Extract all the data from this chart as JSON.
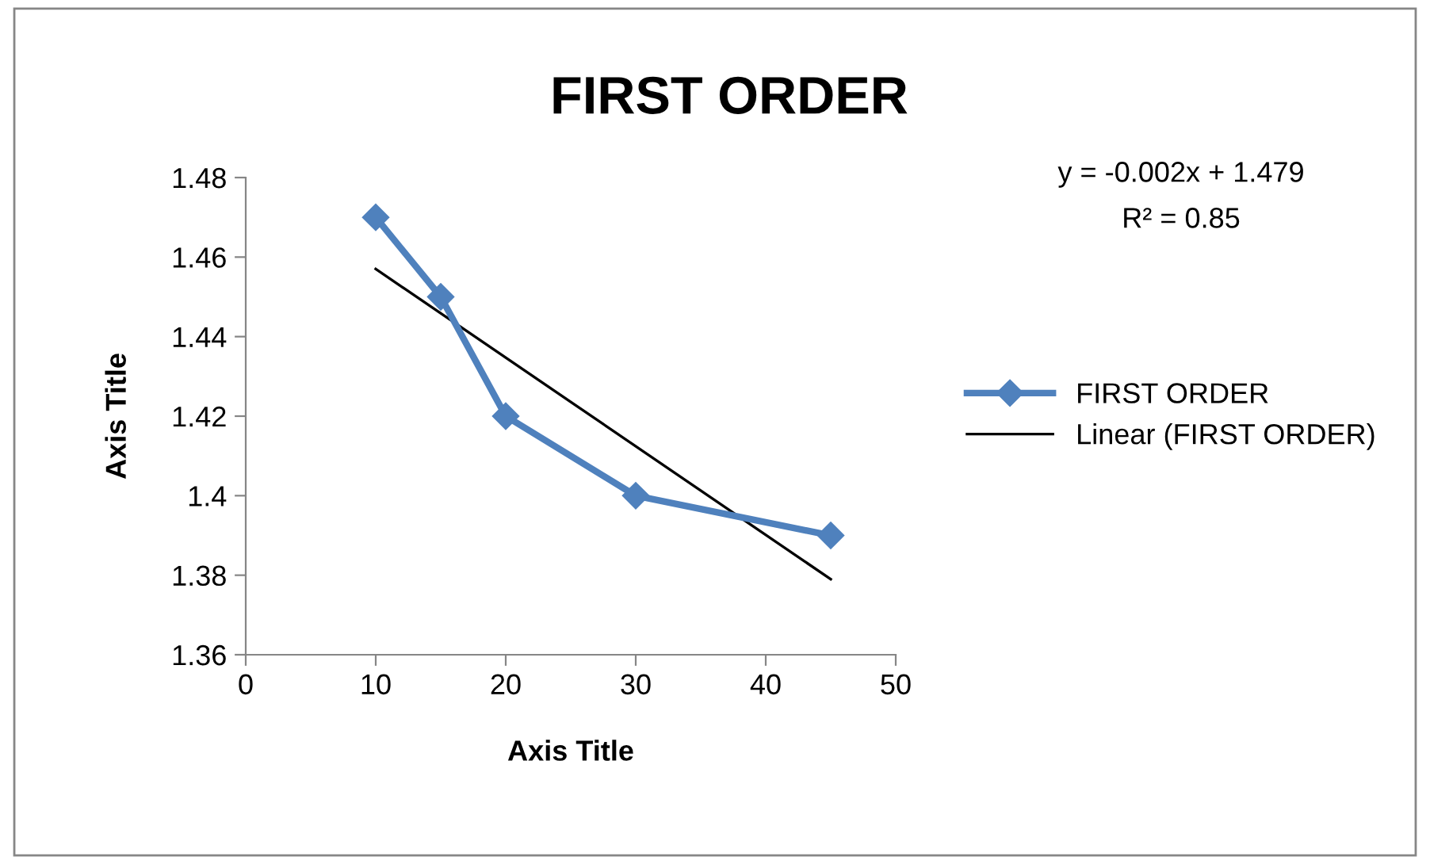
{
  "chart_data": {
    "type": "line",
    "title": "FIRST ORDER",
    "xlabel": "Axis Title",
    "ylabel": "Axis Title",
    "xlim": [
      0,
      50
    ],
    "xticks": [
      0,
      10,
      20,
      30,
      40,
      50
    ],
    "ylim": [
      1.36,
      1.48
    ],
    "yticks": [
      {
        "value": 1.36,
        "label": "1.36"
      },
      {
        "value": 1.38,
        "label": "1.38"
      },
      {
        "value": 1.4,
        "label": "1.4"
      },
      {
        "value": 1.42,
        "label": "1.42"
      },
      {
        "value": 1.44,
        "label": "1.44"
      },
      {
        "value": 1.46,
        "label": "1.46"
      },
      {
        "value": 1.48,
        "label": "1.48"
      }
    ],
    "grid": false,
    "legend": "right",
    "series": [
      {
        "name": "FIRST ORDER",
        "color": "#4f81bd",
        "x": [
          10,
          15,
          20,
          30,
          45
        ],
        "values": [
          1.47,
          1.45,
          1.42,
          1.4,
          1.39
        ],
        "marker": "diamond",
        "line_style": "solid"
      },
      {
        "name": "Linear (FIRST ORDER)",
        "color": "#000000",
        "x": [
          10,
          45
        ],
        "values": [
          1.457,
          1.379
        ],
        "marker": "none",
        "line_style": "solid"
      }
    ],
    "annotations": [
      "y = -0.002x + 1.479",
      "R² = 0.85"
    ]
  }
}
